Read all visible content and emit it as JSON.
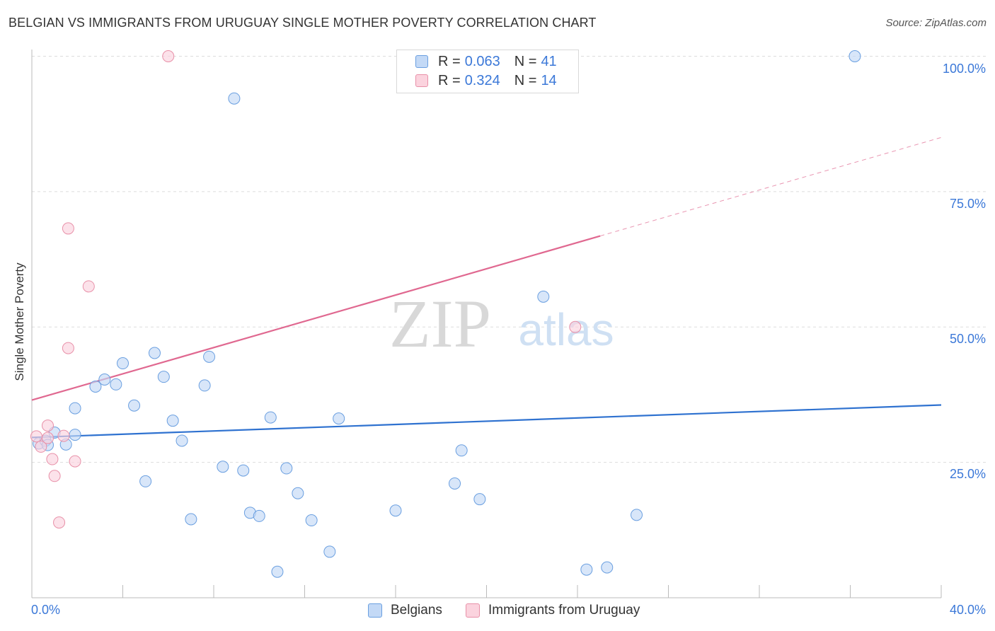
{
  "title": "BELGIAN VS IMMIGRANTS FROM URUGUAY SINGLE MOTHER POVERTY CORRELATION CHART",
  "source": "Source: ZipAtlas.com",
  "watermark": {
    "zip": "ZIP",
    "atlas": "atlas"
  },
  "legend": {
    "rows": [
      {
        "r_label": "R =",
        "r_value": "0.063",
        "n_label": "N =",
        "n_value": "41",
        "color": "#a8c8f0",
        "border": "#6a9fe0"
      },
      {
        "r_label": "R =",
        "r_value": "0.324",
        "n_label": "N =",
        "n_value": "14",
        "color": "#f8c0d0",
        "border": "#e890a8"
      }
    ]
  },
  "bottom_legend": [
    {
      "label": "Belgians",
      "color": "#c3d9f6",
      "border": "#6a9fe0"
    },
    {
      "label": "Immigrants from Uruguay",
      "color": "#fbd3de",
      "border": "#e890a8"
    }
  ],
  "chart_data": {
    "type": "scatter",
    "ylabel": "Single Mother Poverty",
    "xlim": [
      0,
      40
    ],
    "ylim": [
      0,
      105
    ],
    "x_tick_labels": {
      "min": "0.0%",
      "max": "40.0%"
    },
    "y_ticks": [
      {
        "value": 25,
        "label": "25.0%"
      },
      {
        "value": 50,
        "label": "50.0%"
      },
      {
        "value": 75,
        "label": "75.0%"
      },
      {
        "value": 100,
        "label": "100.0%"
      }
    ],
    "series": [
      {
        "name": "Belgians",
        "color": "#6a9fe0",
        "fill": "#c3d9f6",
        "trend": {
          "x0": 0,
          "y0": 29.6,
          "x1": 40,
          "y1": 35.6,
          "color": "#2f72d0",
          "dashed_from": null
        },
        "points": [
          [
            0.3,
            28.5
          ],
          [
            0.6,
            29.0
          ],
          [
            0.7,
            28.2
          ],
          [
            1.0,
            30.5
          ],
          [
            1.5,
            28.3
          ],
          [
            1.9,
            30.1
          ],
          [
            1.9,
            35.0
          ],
          [
            2.8,
            39.0
          ],
          [
            3.2,
            40.3
          ],
          [
            3.7,
            39.4
          ],
          [
            4.0,
            43.3
          ],
          [
            4.5,
            35.5
          ],
          [
            5.0,
            21.5
          ],
          [
            5.4,
            45.2
          ],
          [
            5.8,
            40.8
          ],
          [
            6.2,
            32.7
          ],
          [
            6.6,
            29.0
          ],
          [
            7.0,
            14.5
          ],
          [
            7.6,
            39.2
          ],
          [
            7.8,
            44.5
          ],
          [
            8.4,
            24.2
          ],
          [
            8.9,
            92.2
          ],
          [
            9.3,
            23.5
          ],
          [
            9.6,
            15.7
          ],
          [
            10.0,
            15.1
          ],
          [
            10.5,
            33.3
          ],
          [
            10.8,
            4.8
          ],
          [
            11.2,
            23.9
          ],
          [
            11.7,
            19.3
          ],
          [
            12.3,
            14.3
          ],
          [
            13.1,
            8.5
          ],
          [
            13.5,
            33.1
          ],
          [
            16.0,
            16.1
          ],
          [
            18.6,
            21.1
          ],
          [
            18.9,
            27.2
          ],
          [
            19.7,
            18.2
          ],
          [
            22.5,
            55.6
          ],
          [
            24.4,
            5.2
          ],
          [
            25.3,
            5.6
          ],
          [
            26.6,
            15.3
          ],
          [
            36.2,
            100.0
          ]
        ]
      },
      {
        "name": "Immigrants from Uruguay",
        "color": "#e890a8",
        "fill": "#fbd3de",
        "trend": {
          "x0": 0,
          "y0": 36.5,
          "x1": 40,
          "y1": 85.0,
          "color": "#e06890",
          "dashed_from": 25
        },
        "points": [
          [
            0.2,
            29.8
          ],
          [
            0.4,
            27.9
          ],
          [
            0.7,
            29.5
          ],
          [
            0.7,
            31.8
          ],
          [
            0.9,
            25.6
          ],
          [
            1.0,
            22.5
          ],
          [
            1.2,
            13.9
          ],
          [
            1.4,
            29.9
          ],
          [
            1.6,
            46.1
          ],
          [
            1.6,
            68.2
          ],
          [
            1.9,
            25.2
          ],
          [
            2.5,
            57.5
          ],
          [
            6.0,
            100.0
          ],
          [
            23.9,
            50.0
          ]
        ]
      }
    ]
  }
}
